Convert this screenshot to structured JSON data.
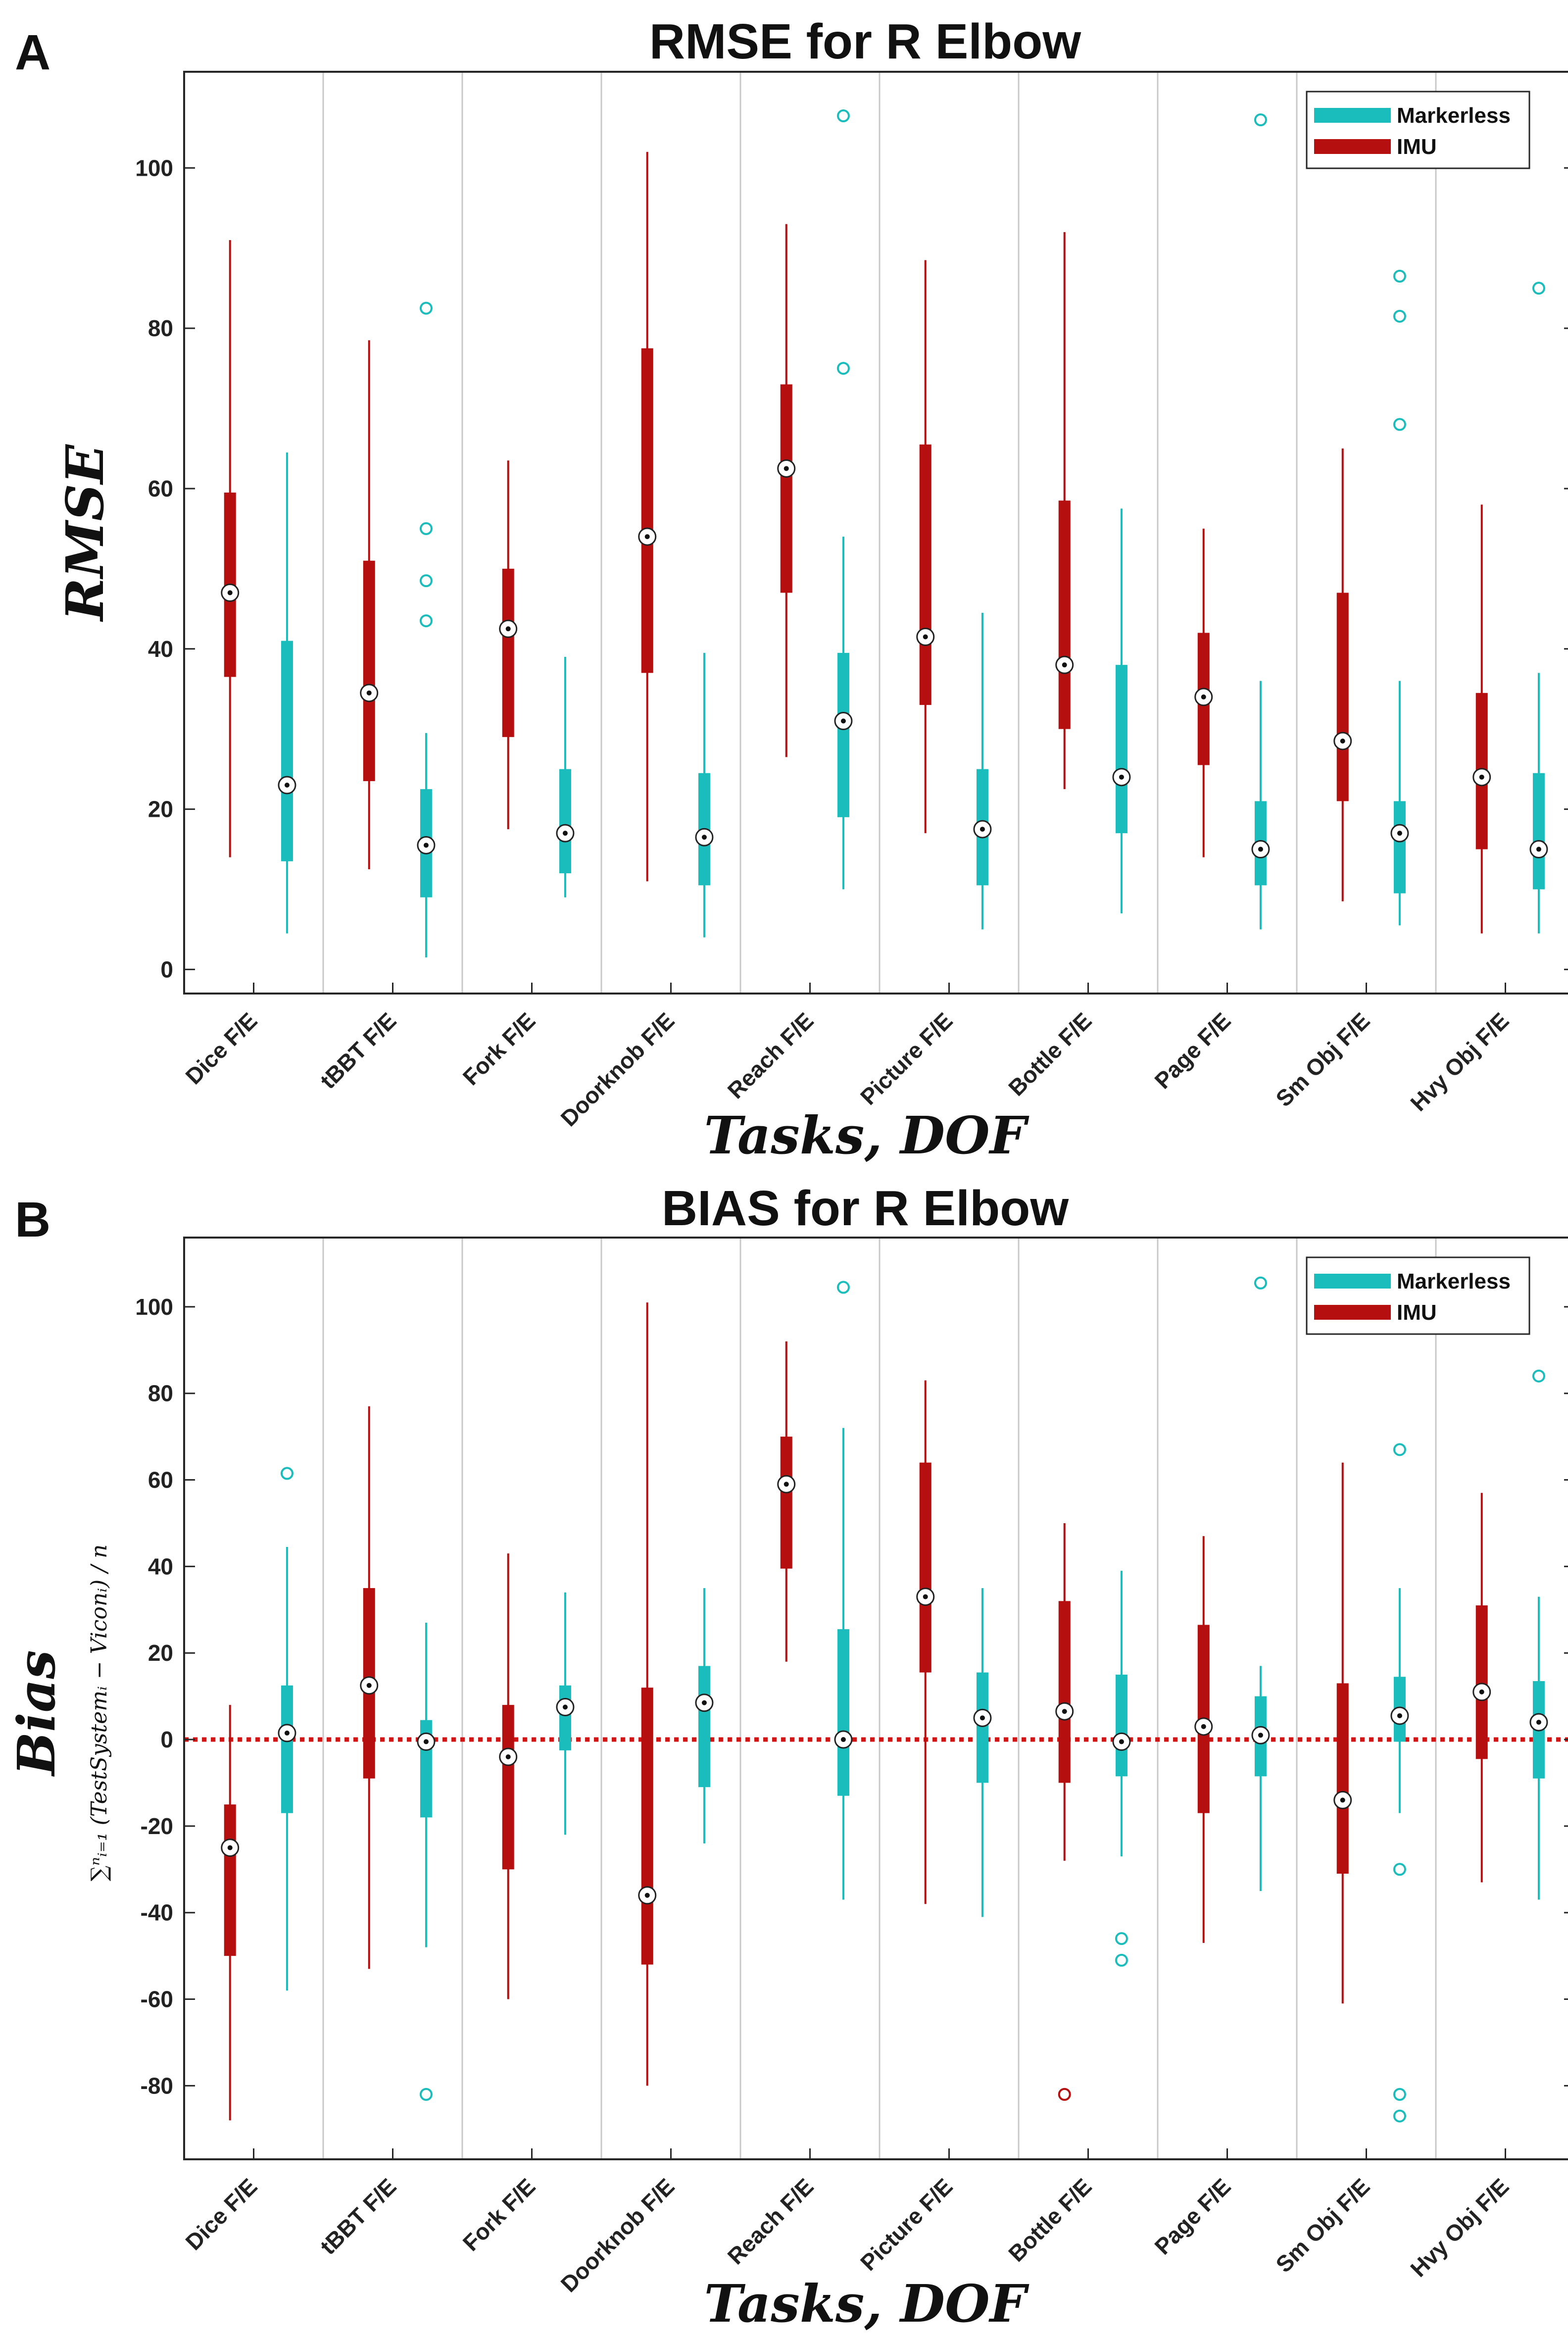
{
  "colors": {
    "markerless": "#1bbcbc",
    "imu": "#b50f0f",
    "gridline": "#c8c8c8",
    "axis": "#262626",
    "zero_line": "#d21414"
  },
  "chart_data": [
    {
      "panel_label": "A",
      "type": "boxplot",
      "title": "RMSE for R Elbow",
      "xlabel": "Tasks, DOF",
      "ylabel": "RMSE",
      "ylim": [
        -3,
        112
      ],
      "yticks": [
        0,
        20,
        40,
        60,
        80,
        100
      ],
      "categories": [
        "Dice F/E",
        "tBBT F/E",
        "Fork F/E",
        "Doorknob F/E",
        "Reach F/E",
        "Picture F/E",
        "Bottle F/E",
        "Page F/E",
        "Sm Obj F/E",
        "Hvy Obj F/E"
      ],
      "legend": {
        "position": "top-right",
        "entries": [
          "Markerless",
          "IMU"
        ]
      },
      "zero_line": false,
      "series": [
        {
          "name": "IMU",
          "color": "#b50f0f",
          "boxes": [
            {
              "min": 14,
              "q1": 36.5,
              "median": 47,
              "q3": 59.5,
              "max": 91,
              "outliers": []
            },
            {
              "min": 12.5,
              "q1": 23.5,
              "median": 34.5,
              "q3": 51,
              "max": 78.5,
              "outliers": []
            },
            {
              "min": 17.5,
              "q1": 29,
              "median": 42.5,
              "q3": 50,
              "max": 63.5,
              "outliers": []
            },
            {
              "min": 11,
              "q1": 37,
              "median": 54,
              "q3": 77.5,
              "max": 102,
              "outliers": []
            },
            {
              "min": 26.5,
              "q1": 47,
              "median": 62.5,
              "q3": 73,
              "max": 93,
              "outliers": []
            },
            {
              "min": 17,
              "q1": 33,
              "median": 41.5,
              "q3": 65.5,
              "max": 88.5,
              "outliers": []
            },
            {
              "min": 22.5,
              "q1": 30,
              "median": 38,
              "q3": 58.5,
              "max": 92,
              "outliers": []
            },
            {
              "min": 14,
              "q1": 25.5,
              "median": 34,
              "q3": 42,
              "max": 55,
              "outliers": []
            },
            {
              "min": 8.5,
              "q1": 21,
              "median": 28.5,
              "q3": 47,
              "max": 65,
              "outliers": []
            },
            {
              "min": 4.5,
              "q1": 15,
              "median": 24,
              "q3": 34.5,
              "max": 58,
              "outliers": []
            }
          ]
        },
        {
          "name": "Markerless",
          "color": "#1bbcbc",
          "boxes": [
            {
              "min": 4.5,
              "q1": 13.5,
              "median": 23,
              "q3": 41,
              "max": 64.5,
              "outliers": []
            },
            {
              "min": 1.5,
              "q1": 9,
              "median": 15.5,
              "q3": 22.5,
              "max": 29.5,
              "outliers": [
                43.5,
                48.5,
                55,
                82.5
              ]
            },
            {
              "min": 9,
              "q1": 12,
              "median": 17,
              "q3": 25,
              "max": 39,
              "outliers": []
            },
            {
              "min": 4,
              "q1": 10.5,
              "median": 16.5,
              "q3": 24.5,
              "max": 39.5,
              "outliers": []
            },
            {
              "min": 10,
              "q1": 19,
              "median": 31,
              "q3": 39.5,
              "max": 54,
              "outliers": [
                75,
                106.5
              ]
            },
            {
              "min": 5,
              "q1": 10.5,
              "median": 17.5,
              "q3": 25,
              "max": 44.5,
              "outliers": []
            },
            {
              "min": 7,
              "q1": 17,
              "median": 24,
              "q3": 38,
              "max": 57.5,
              "outliers": []
            },
            {
              "min": 5,
              "q1": 10.5,
              "median": 15,
              "q3": 21,
              "max": 36,
              "outliers": [
                106
              ]
            },
            {
              "min": 5.5,
              "q1": 9.5,
              "median": 17,
              "q3": 21,
              "max": 36,
              "outliers": [
                68,
                81.5,
                86.5
              ]
            },
            {
              "min": 4.5,
              "q1": 10,
              "median": 15,
              "q3": 24.5,
              "max": 37,
              "outliers": [
                85
              ]
            }
          ]
        }
      ]
    },
    {
      "panel_label": "B",
      "type": "boxplot",
      "title": "BIAS for R Elbow",
      "xlabel": "Tasks, DOF",
      "ylabel": "Bias",
      "ylabel_sub": "∑ⁿᵢ₌₁ (TestSystemᵢ − Viconᵢ) / n",
      "ylim": [
        -97,
        116
      ],
      "yticks": [
        -80,
        -60,
        -40,
        -20,
        0,
        20,
        40,
        60,
        80,
        100
      ],
      "categories": [
        "Dice F/E",
        "tBBT F/E",
        "Fork F/E",
        "Doorknob F/E",
        "Reach F/E",
        "Picture F/E",
        "Bottle F/E",
        "Page F/E",
        "Sm Obj F/E",
        "Hvy Obj F/E"
      ],
      "legend": {
        "position": "top-right",
        "entries": [
          "Markerless",
          "IMU"
        ]
      },
      "zero_line": true,
      "series": [
        {
          "name": "IMU",
          "color": "#b50f0f",
          "boxes": [
            {
              "min": -88,
              "q1": -50,
              "median": -25,
              "q3": -15,
              "max": 8,
              "outliers": []
            },
            {
              "min": -53,
              "q1": -9,
              "median": 12.5,
              "q3": 35,
              "max": 77,
              "outliers": []
            },
            {
              "min": -60,
              "q1": -30,
              "median": -4,
              "q3": 8,
              "max": 43,
              "outliers": []
            },
            {
              "min": -80,
              "q1": -52,
              "median": -36,
              "q3": 12,
              "max": 101,
              "outliers": []
            },
            {
              "min": 18,
              "q1": 39.5,
              "median": 59,
              "q3": 70,
              "max": 92,
              "outliers": []
            },
            {
              "min": -38,
              "q1": 15.5,
              "median": 33,
              "q3": 64,
              "max": 83,
              "outliers": []
            },
            {
              "min": -28,
              "q1": -10,
              "median": 6.5,
              "q3": 32,
              "max": 50,
              "outliers": [
                -82
              ]
            },
            {
              "min": -47,
              "q1": -17,
              "median": 3,
              "q3": 26.5,
              "max": 47,
              "outliers": []
            },
            {
              "min": -61,
              "q1": -31,
              "median": -14,
              "q3": 13,
              "max": 64,
              "outliers": []
            },
            {
              "min": -33,
              "q1": -4.5,
              "median": 11,
              "q3": 31,
              "max": 57,
              "outliers": []
            }
          ]
        },
        {
          "name": "Markerless",
          "color": "#1bbcbc",
          "boxes": [
            {
              "min": -58,
              "q1": -17,
              "median": 1.5,
              "q3": 12.5,
              "max": 44.5,
              "outliers": [
                61.5
              ]
            },
            {
              "min": -48,
              "q1": -18,
              "median": -0.5,
              "q3": 4.5,
              "max": 27,
              "outliers": [
                -82
              ]
            },
            {
              "min": -22,
              "q1": -2.5,
              "median": 7.5,
              "q3": 12.5,
              "max": 34,
              "outliers": []
            },
            {
              "min": -24,
              "q1": -11,
              "median": 8.5,
              "q3": 17,
              "max": 35,
              "outliers": []
            },
            {
              "min": -37,
              "q1": -13,
              "median": 0,
              "q3": 25.5,
              "max": 72,
              "outliers": [
                104.5
              ]
            },
            {
              "min": -41,
              "q1": -10,
              "median": 5,
              "q3": 15.5,
              "max": 35,
              "outliers": []
            },
            {
              "min": -27,
              "q1": -8.5,
              "median": -0.5,
              "q3": 15,
              "max": 39,
              "outliers": [
                -46,
                -51
              ]
            },
            {
              "min": -35,
              "q1": -8.5,
              "median": 1,
              "q3": 10,
              "max": 17,
              "outliers": [
                105.5
              ]
            },
            {
              "min": -17,
              "q1": -0.5,
              "median": 5.5,
              "q3": 14.5,
              "max": 35,
              "outliers": [
                -30,
                -82,
                -87,
                67
              ]
            },
            {
              "min": -37,
              "q1": -9,
              "median": 4,
              "q3": 13.5,
              "max": 33,
              "outliers": [
                84
              ]
            }
          ]
        }
      ]
    }
  ]
}
